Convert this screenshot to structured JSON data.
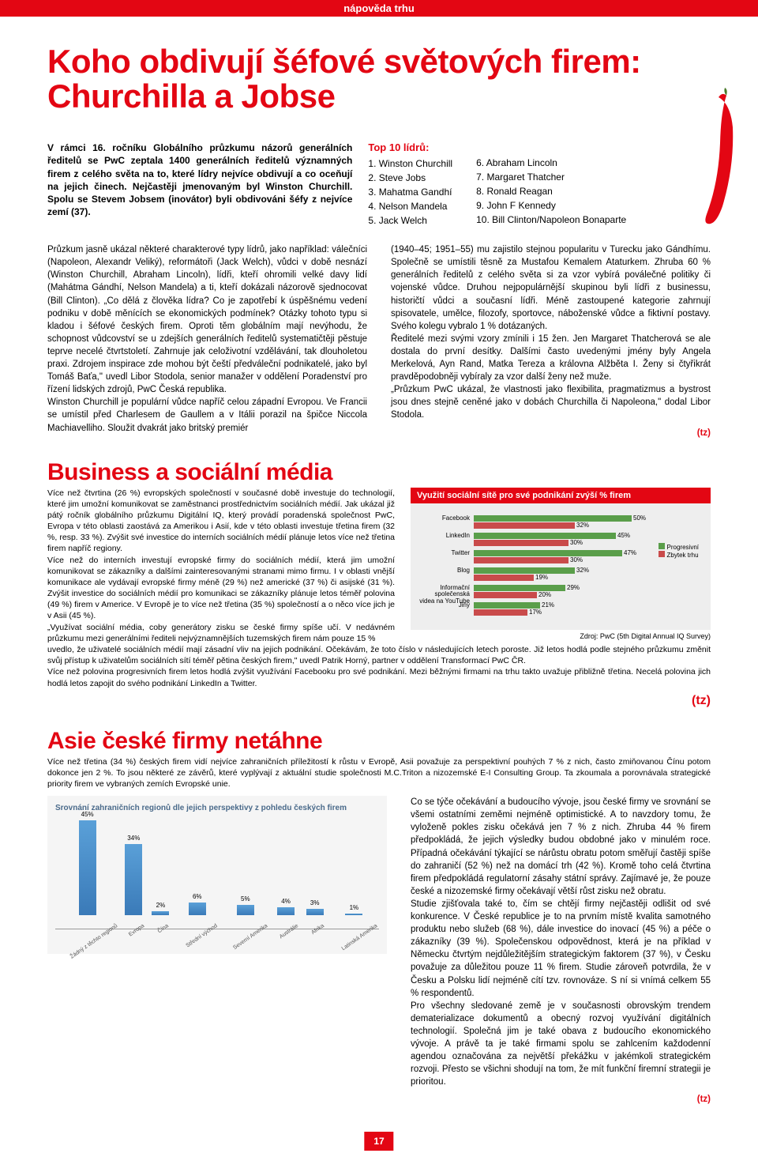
{
  "header_tag": "nápověda trhu",
  "main_title": "Koho obdivují šéfové světových firem: Churchilla a Jobse",
  "accent_color": "#e30613",
  "intro": "V rámci 16. ročníku Globálního průzkumu názorů generálních ředitelů se PwC zeptala 1400 generálních ředitelů významných firem z celého světa na to, které lídry nejvíce obdivují a co oceňují na jejich činech. Nejčastěji jmenovaným byl Winston Churchill. Spolu se Stevem Jobsem (inovátor) byli obdivováni šéfy z nejvíce zemí (37).",
  "leaders": {
    "title": "Top 10 lídrů:",
    "left": [
      "1. Winston Churchill",
      "2. Steve Jobs",
      "3. Mahatma Gandhí",
      "4. Nelson Mandela",
      "5. Jack Welch"
    ],
    "right": [
      "6. Abraham Lincoln",
      "7. Margaret Thatcher",
      "8. Ronald Reagan",
      "9. John F Kennedy",
      "10. Bill Clinton/Napoleon Bonaparte"
    ]
  },
  "article1": {
    "col1": "Průzkum jasně ukázal některé charakterové typy lídrů, jako například: válečníci (Napoleon, Alexandr Veliký), reformátoři (Jack Welch), vůdci v době nesnází (Winston Churchill, Abraham Lincoln), lídři, kteří ohromili velké davy lidí (Mahátma Gándhí, Nelson Mandela) a ti, kteří dokázali názorově sjednocovat (Bill Clinton). „Co dělá z člověka lídra? Co je zapotřebí k úspěšnému vedení podniku v době měnících se ekonomických podmínek? Otázky tohoto typu si kladou i šéfové českých firem. Oproti těm globálním mají nevýhodu, že schopnost vůdcovství se u zdejších generálních ředitelů systematičtěji pěstuje teprve necelé čtvrtstoletí. Zahrnuje jak celoživotní vzdělávání, tak dlouholetou praxi. Zdrojem inspirace zde mohou být čeští předváleční podnikatelé, jako byl Tomáš Baťa,\" uvedl Libor Stodola, senior manažer v oddělení Poradenství pro řízení lidských zdrojů, PwC Česká republika.\nWinston Churchill je populární vůdce napříč celou západní Evropou. Ve Francii se umístil před Charlesem de Gaullem a v Itálii porazil na špičce Niccola Machiavelliho. Sloužit dvakrát jako britský premiér",
    "col2": "(1940–45; 1951–55) mu zajistilo stejnou popularitu v Turecku jako Gándhímu. Společně se umístili těsně za Mustafou Kemalem Ataturkem. Zhruba 60 % generálních ředitelů z celého světa si za vzor vybírá poválečné politiky či vojenské vůdce. Druhou nejpopulárnější skupinou byli lídři z businessu, historičtí vůdci a současní lídři. Méně zastoupené kategorie zahrnují spisovatele, umělce, filozofy, sportovce, náboženské vůdce a fiktivní postavy. Svého kolegu vybralo 1 % dotázaných.\nŘeditelé mezi svými vzory zmínili i 15 žen. Jen Margaret Thatcherová se ale dostala do první desítky. Dalšími často uvedenými jmény byly Angela Merkelová, Ayn Rand, Matka Tereza a královna Alžběta I. Ženy si čtyřikrát pravděpodobněji vybíraly za vzor další ženy než muže.\n„Průzkum PwC ukázal, že vlastnosti jako flexibilita, pragmatizmus a bystrost jsou dnes stejně ceněné jako v dobách Churchilla či Napoleona,\" dodal Libor Stodola.",
    "sig": "(tz)"
  },
  "business": {
    "title": "Business a sociální média",
    "text1": "Více než čtvrtina (26 %) evropských společností v současné době investuje do technologií, které jim umožní komunikovat se zaměstnanci prostřednictvím sociálních médií. Jak ukázal již pátý ročník globálního průzkumu Digitální IQ, který provádí poradenská společnost PwC, Evropa v této oblasti zaostává za Amerikou i Asií, kde v této oblasti investuje třetina firem (32 %, resp. 33 %). Zvýšit své investice do interních sociálních médií plánuje letos více než třetina firem napříč regiony.\nVíce než do interních investují evropské firmy do sociálních médií, která jim umožní komunikovat se zákazníky a dalšími zainteresovanými stranami mimo firmu. I v oblasti vnější komunikace ale vydávají evropské firmy méně (29 %) než americké (37 %) či asijské (31 %). Zvýšit investice do sociálních médií pro komunikaci se zákazníky plánuje letos téměř polovina (49 %) firem v Americe. V Evropě je to více než třetina (35 %) společností a o něco více jich je v Asii (45 %).\n„Využívat sociální média, coby generátory zisku se české firmy spíše učí. V nedávném průzkumu mezi generálními řediteli nejvýznamnějších tuzemských firem nám pouze 15 %",
    "text2": "uvedlo, že uživatelé sociálních médií mají zásadní vliv na jejich podnikání. Očekávám, že toto číslo v následujících letech poroste. Již letos hodlá podle stejného průzkumu změnit svůj přístup k uživatelům sociálních sítí téměř pětina českých firem,\" uvedl Patrik Horný, partner v oddělení Transformací PwC ČR.\nVíce než polovina progresivních firem letos hodlá zvýšit využívání Facebooku pro své podnikání. Mezi běžnými firmami na trhu takto uvažuje přibližně třetina. Necelá polovina jich hodlá letos zapojit do svého podnikání LinkedIn a Twitter.",
    "sig": "(tz)",
    "chart": {
      "title": "Využití sociální sítě pro své podnikání zvýší % firem",
      "labels": [
        "Facebook",
        "LinkedIn",
        "Twitter",
        "Blog",
        "Informační společenská videa na YouTube",
        "Jiný"
      ],
      "progressive": [
        50,
        45,
        47,
        32,
        29,
        21
      ],
      "normal": [
        32,
        30,
        30,
        19,
        20,
        17
      ],
      "legend": [
        "Progresivní",
        "Zbytek trhu"
      ],
      "colors": {
        "progressive": "#5a9e4a",
        "normal": "#c94b4b"
      },
      "source": "Zdroj: PwC (5th Digital Annual IQ Survey)"
    }
  },
  "asie": {
    "title": "Asie české firmy netáhne",
    "intro": "Více než třetina (34 %) českých firem vidí nejvíce zahraničních příležitostí k růstu v Evropě, Asii považuje za perspektivní pouhých 7 % z nich, často zmiňovanou Čínu potom dokonce jen 2 %. To jsou některé ze závěrů, které vyplývají z aktuální studie společnosti M.C.Triton a nizozemské E-I Consulting Group. Ta zkoumala a porovnávala strategické priority firem ve vybraných zemích Evropské unie.",
    "text": "Co se týče očekávání a budoucího vývoje, jsou české firmy ve srovnání se všemi ostatními zeměmi nejméně optimistické. A to navzdory tomu, že vyloženě pokles zisku očekává jen 7 % z nich. Zhruba 44 % firem předpokládá, že jejich výsledky budou obdobné jako v minulém roce. Případná očekávání týkající se nárůstu obratu potom směřují častěji spíše do zahraničí (52 %) než na domácí trh (42 %). Kromě toho celá čtvrtina firem předpokládá regulatorní zásahy státní správy. Zajímavé je, že pouze české a nizozemské firmy očekávají větší růst zisku než obratu.\nStudie zjišťovala také to, čím se chtějí firmy nejčastěji odlišit od své konkurence. V České republice je to na prvním místě kvalita samotného produktu nebo služeb (68 %), dále investice do inovací (45 %) a péče o zákazníky (39 %). Společenskou odpovědnost, která je na příklad v Německu čtvrtým nejdůležitějším strategickým faktorem (37 %), v Česku považuje za důležitou pouze 11 % firem. Studie zároveň potvrdila, že v Česku a Polsku lidí nejméně cítí tzv. rovnováze. S ní si vnímá celkem 55 % respondentů.\nPro všechny sledované země je v současnosti obrovským trendem dematerializace dokumentů a obecný rozvoj využívání digitálních technologií. Společná jim je také obava z budoucího ekonomického vývoje. A právě ta je také firmami spolu se zahlcením každodenní agendou označována za největší překážku v jakémkoli strategickém rozvoji. Přesto se všichni shodují na tom, že mít funkční firemní strategii je prioritou.",
    "sig": "(tz)",
    "chart": {
      "title": "Srovnání zahraničních regionů dle jejich perspektivy z pohledu českých firem",
      "categories": [
        "Žádný z těchto regionů",
        "Evropa",
        "Čína",
        "Střední východ",
        "Severní Amerika",
        "Austrálie",
        "Afrika",
        "Latinská Amerika"
      ],
      "values": [
        45,
        34,
        2,
        6,
        5,
        4,
        3,
        1
      ],
      "highlight_index": 1,
      "color": "#5aa0d8"
    }
  },
  "page_number": "17"
}
